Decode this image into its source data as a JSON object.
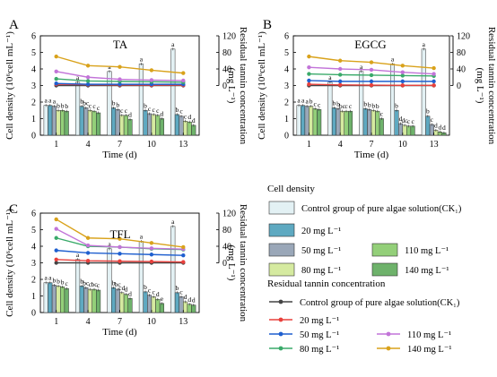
{
  "figure": {
    "legend_cell_title": "Cell density",
    "legend_tannin_title": "Residual tannin concentration",
    "bar_legend": [
      {
        "label": "Control group of pure algae solution(CK₁)",
        "color": "#e3f1f4"
      },
      {
        "label": "20 mg L⁻¹",
        "color": "#5ea9c1"
      },
      {
        "label": "50 mg L⁻¹",
        "color": "#9aa7b8"
      },
      {
        "label": "80 mg L⁻¹",
        "color": "#d5eaa0"
      },
      {
        "label": "110 mg L⁻¹",
        "color": "#93cf79"
      },
      {
        "label": "140 mg L⁻¹",
        "color": "#6eb26b"
      }
    ],
    "line_legend": [
      {
        "label": "Control group of pure algae solution(CK₁)",
        "color": "#444444"
      },
      {
        "label": "20 mg L⁻¹",
        "color": "#e8403c"
      },
      {
        "label": "50 mg L⁻¹",
        "color": "#1f5fcf"
      },
      {
        "label": "80 mg L⁻¹",
        "color": "#3aaa6a"
      },
      {
        "label": "110 mg L⁻¹",
        "color": "#c274d8"
      },
      {
        "label": "140 mg L⁻¹",
        "color": "#d9a21b"
      }
    ]
  },
  "chart_data": [
    {
      "type": "bar",
      "panel": "A",
      "title": "TA",
      "xlabel": "Time  (d)",
      "ylabel": "Cell density (10⁶cell mL⁻¹)",
      "y2label": "Residual tannin concentration (mg L⁻¹)",
      "categories": [
        "1",
        "4",
        "7",
        "10",
        "13"
      ],
      "ylim": [
        0,
        6
      ],
      "yticks": [
        "0",
        "1",
        "2",
        "3",
        "4",
        "5",
        "6"
      ],
      "y2lim": [
        -120,
        120
      ],
      "y2ticks": [
        "0",
        "40",
        "80",
        "120"
      ],
      "bars": [
        [
          1.8,
          1.8,
          1.75,
          1.5,
          1.5,
          1.45
        ],
        [
          3.2,
          1.75,
          1.65,
          1.5,
          1.45,
          1.35
        ],
        [
          3.85,
          1.65,
          1.55,
          1.2,
          1.2,
          0.95
        ],
        [
          4.3,
          1.5,
          1.3,
          1.25,
          1.2,
          1.0
        ],
        [
          5.2,
          1.25,
          1.15,
          0.85,
          0.8,
          0.6
        ]
      ],
      "bar_letters": [
        [
          "a",
          "a",
          "a",
          "b",
          "b",
          "b"
        ],
        [
          "a",
          "b",
          "bc",
          "c",
          "c",
          "c"
        ],
        [
          "a",
          "b",
          "b",
          "c",
          "c",
          "d"
        ],
        [
          "a",
          "b",
          "c",
          "c",
          "c",
          "d"
        ],
        [
          "a",
          "b",
          "c",
          "c",
          "d",
          "d"
        ]
      ],
      "lines": [
        [
          0,
          0,
          0,
          0,
          0
        ],
        [
          3,
          2,
          1.5,
          1,
          1
        ],
        [
          5,
          3,
          3,
          3,
          3
        ],
        [
          16,
          11,
          10,
          9,
          8
        ],
        [
          34,
          20,
          15,
          13,
          12
        ],
        [
          70,
          48,
          45,
          37,
          30
        ]
      ]
    },
    {
      "type": "bar",
      "panel": "B",
      "title": "EGCG",
      "xlabel": "Time  (d)",
      "ylabel": "Cell density (10⁶cell mL⁻¹)",
      "y2label": "Residual tannin concentration (mg L⁻¹)",
      "categories": [
        "1",
        "4",
        "7",
        "10",
        "13"
      ],
      "ylim": [
        0,
        6
      ],
      "yticks": [
        "0",
        "1",
        "2",
        "3",
        "4",
        "5",
        "6"
      ],
      "y2lim": [
        -120,
        120
      ],
      "y2ticks": [
        "0",
        "40",
        "80",
        "120"
      ],
      "bars": [
        [
          1.8,
          1.8,
          1.75,
          1.75,
          1.6,
          1.55
        ],
        [
          3.2,
          1.65,
          1.6,
          1.45,
          1.45,
          1.45
        ],
        [
          3.85,
          1.6,
          1.55,
          1.5,
          1.45,
          1.0
        ],
        [
          4.3,
          1.5,
          0.7,
          0.6,
          0.55,
          0.55
        ],
        [
          5.2,
          1.15,
          0.65,
          0.3,
          0.2,
          0.15
        ]
      ],
      "bar_letters": [
        [
          "a",
          "a",
          "a",
          "b",
          "c",
          "c"
        ],
        [
          "a",
          "b",
          "b",
          "bc",
          "c",
          "c"
        ],
        [
          "a",
          "b",
          "b",
          "b",
          "b",
          "c"
        ],
        [
          "a",
          "b",
          "d",
          "dc",
          "c",
          "c"
        ],
        [
          "a",
          "b",
          "c",
          "d",
          "d",
          "d"
        ]
      ],
      "lines": [
        [
          0,
          0,
          0,
          0,
          0
        ],
        [
          3,
          1.5,
          1,
          0.5,
          0.5
        ],
        [
          12,
          10,
          10,
          10,
          10
        ],
        [
          28,
          26,
          25,
          24,
          23
        ],
        [
          44,
          40,
          38,
          32,
          28
        ],
        [
          70,
          60,
          56,
          48,
          42
        ]
      ]
    },
    {
      "type": "bar",
      "panel": "C",
      "title": "TFL",
      "xlabel": "Time  (d)",
      "ylabel": "Cell density (10⁶cell mL⁻¹)",
      "y2label": "Residual tannin concentration (mg L⁻¹)",
      "categories": [
        "1",
        "4",
        "7",
        "10",
        "13"
      ],
      "ylim": [
        0,
        6
      ],
      "yticks": [
        "0",
        "1",
        "2",
        "3",
        "4",
        "5",
        "6"
      ],
      "y2lim": [
        -120,
        120
      ],
      "y2ticks": [
        "0",
        "40",
        "80",
        "120"
      ],
      "bars": [
        [
          1.8,
          1.8,
          1.65,
          1.6,
          1.55,
          1.45
        ],
        [
          3.2,
          1.6,
          1.5,
          1.4,
          1.4,
          1.35
        ],
        [
          3.85,
          1.5,
          1.4,
          1.2,
          1.1,
          0.85
        ],
        [
          4.3,
          1.25,
          1.05,
          0.95,
          0.8,
          0.55
        ],
        [
          5.2,
          1.2,
          0.95,
          0.65,
          0.5,
          0.45
        ]
      ],
      "bar_letters": [
        [
          "a",
          "a",
          "b",
          "b",
          "b",
          "c"
        ],
        [
          "a",
          "b",
          "bc",
          "c",
          "bc",
          "c"
        ],
        [
          "a",
          "b",
          "bc",
          "cd",
          "d",
          "d"
        ],
        [
          "a",
          "b",
          "c",
          "c",
          "d",
          "e"
        ],
        [
          "a",
          "b",
          "c",
          "d",
          "d",
          "d"
        ]
      ],
      "lines": [
        [
          0,
          0,
          0,
          0,
          0
        ],
        [
          8,
          5,
          4,
          3,
          2
        ],
        [
          30,
          24,
          22,
          20,
          18
        ],
        [
          60,
          40,
          38,
          34,
          32
        ],
        [
          82,
          42,
          38,
          35,
          33
        ],
        [
          105,
          60,
          58,
          48,
          38
        ]
      ]
    }
  ]
}
